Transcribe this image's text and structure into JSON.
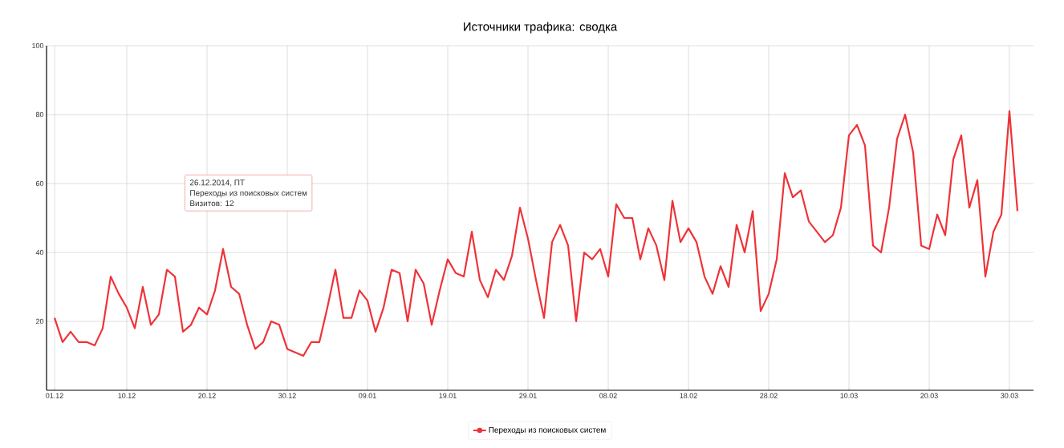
{
  "chart_data": {
    "type": "line",
    "title": "Источники трафика: сводка",
    "x": [
      "2014-12-01",
      "2014-12-02",
      "2014-12-03",
      "2014-12-04",
      "2014-12-05",
      "2014-12-06",
      "2014-12-07",
      "2014-12-08",
      "2014-12-09",
      "2014-12-10",
      "2014-12-11",
      "2014-12-12",
      "2014-12-13",
      "2014-12-14",
      "2014-12-15",
      "2014-12-16",
      "2014-12-17",
      "2014-12-18",
      "2014-12-19",
      "2014-12-20",
      "2014-12-21",
      "2014-12-22",
      "2014-12-23",
      "2014-12-24",
      "2014-12-25",
      "2014-12-26",
      "2014-12-27",
      "2014-12-28",
      "2014-12-29",
      "2014-12-30",
      "2014-12-31",
      "2015-01-01",
      "2015-01-02",
      "2015-01-03",
      "2015-01-04",
      "2015-01-05",
      "2015-01-06",
      "2015-01-07",
      "2015-01-08",
      "2015-01-09",
      "2015-01-10",
      "2015-01-11",
      "2015-01-12",
      "2015-01-13",
      "2015-01-14",
      "2015-01-15",
      "2015-01-16",
      "2015-01-17",
      "2015-01-18",
      "2015-01-19",
      "2015-01-20",
      "2015-01-21",
      "2015-01-22",
      "2015-01-23",
      "2015-01-24",
      "2015-01-25",
      "2015-01-26",
      "2015-01-27",
      "2015-01-28",
      "2015-01-29",
      "2015-01-30",
      "2015-01-31",
      "2015-02-01",
      "2015-02-02",
      "2015-02-03",
      "2015-02-04",
      "2015-02-05",
      "2015-02-06",
      "2015-02-07",
      "2015-02-08",
      "2015-02-09",
      "2015-02-10",
      "2015-02-11",
      "2015-02-12",
      "2015-02-13",
      "2015-02-14",
      "2015-02-15",
      "2015-02-16",
      "2015-02-17",
      "2015-02-18",
      "2015-02-19",
      "2015-02-20",
      "2015-02-21",
      "2015-02-22",
      "2015-02-23",
      "2015-02-24",
      "2015-02-25",
      "2015-02-26",
      "2015-02-27",
      "2015-02-28",
      "2015-03-01",
      "2015-03-02",
      "2015-03-03",
      "2015-03-04",
      "2015-03-05",
      "2015-03-06",
      "2015-03-07",
      "2015-03-08",
      "2015-03-09",
      "2015-03-10",
      "2015-03-11",
      "2015-03-12",
      "2015-03-13",
      "2015-03-14",
      "2015-03-15",
      "2015-03-16",
      "2015-03-17",
      "2015-03-18",
      "2015-03-19",
      "2015-03-20",
      "2015-03-21",
      "2015-03-22",
      "2015-03-23",
      "2015-03-24",
      "2015-03-25",
      "2015-03-26",
      "2015-03-27",
      "2015-03-28",
      "2015-03-29",
      "2015-03-30",
      "2015-03-31"
    ],
    "series": [
      {
        "name": "Переходы из поисковых систем",
        "color": "#ee3338",
        "values": [
          21,
          14,
          17,
          14,
          14,
          13,
          18,
          33,
          28,
          24,
          18,
          30,
          19,
          22,
          35,
          33,
          17,
          19,
          24,
          22,
          29,
          41,
          30,
          28,
          19,
          12,
          14,
          20,
          19,
          12,
          11,
          10,
          14,
          14,
          24,
          35,
          21,
          21,
          29,
          26,
          17,
          24,
          35,
          34,
          20,
          35,
          31,
          19,
          29,
          38,
          34,
          33,
          46,
          32,
          27,
          35,
          32,
          39,
          53,
          44,
          32,
          21,
          43,
          48,
          42,
          20,
          40,
          38,
          41,
          33,
          54,
          50,
          50,
          38,
          47,
          42,
          32,
          55,
          43,
          47,
          43,
          33,
          28,
          36,
          30,
          48,
          40,
          52,
          23,
          28,
          38,
          63,
          56,
          58,
          49,
          46,
          43,
          45,
          53,
          74,
          77,
          71,
          42,
          40,
          53,
          73,
          80,
          69,
          42,
          41,
          51,
          45,
          67,
          74,
          53,
          61,
          33,
          46,
          51,
          81,
          52
        ]
      }
    ],
    "xlim": [
      "2014-11-30",
      "2015-04-02"
    ],
    "xticks": [
      {
        "value": "2014-12-01",
        "label": "01.12"
      },
      {
        "value": "2014-12-10",
        "label": "10.12"
      },
      {
        "value": "2014-12-20",
        "label": "20.12"
      },
      {
        "value": "2014-12-30",
        "label": "30.12"
      },
      {
        "value": "2015-01-09",
        "label": "09.01"
      },
      {
        "value": "2015-01-19",
        "label": "19.01"
      },
      {
        "value": "2015-01-29",
        "label": "29.01"
      },
      {
        "value": "2015-02-08",
        "label": "08.02"
      },
      {
        "value": "2015-02-18",
        "label": "18.02"
      },
      {
        "value": "2015-02-28",
        "label": "28.02"
      },
      {
        "value": "2015-03-10",
        "label": "10.03"
      },
      {
        "value": "2015-03-20",
        "label": "20.03"
      },
      {
        "value": "2015-03-30",
        "label": "30.03"
      }
    ],
    "ylim": [
      0,
      100
    ],
    "yticks": [
      20,
      40,
      60,
      80,
      100
    ],
    "grid": true,
    "legend": "bottom",
    "marker": "none",
    "line_style": "solid",
    "annotations": [
      "26.12.2014, ПТ",
      "Переходы из поисковых систем",
      "Визитов: 12"
    ]
  }
}
